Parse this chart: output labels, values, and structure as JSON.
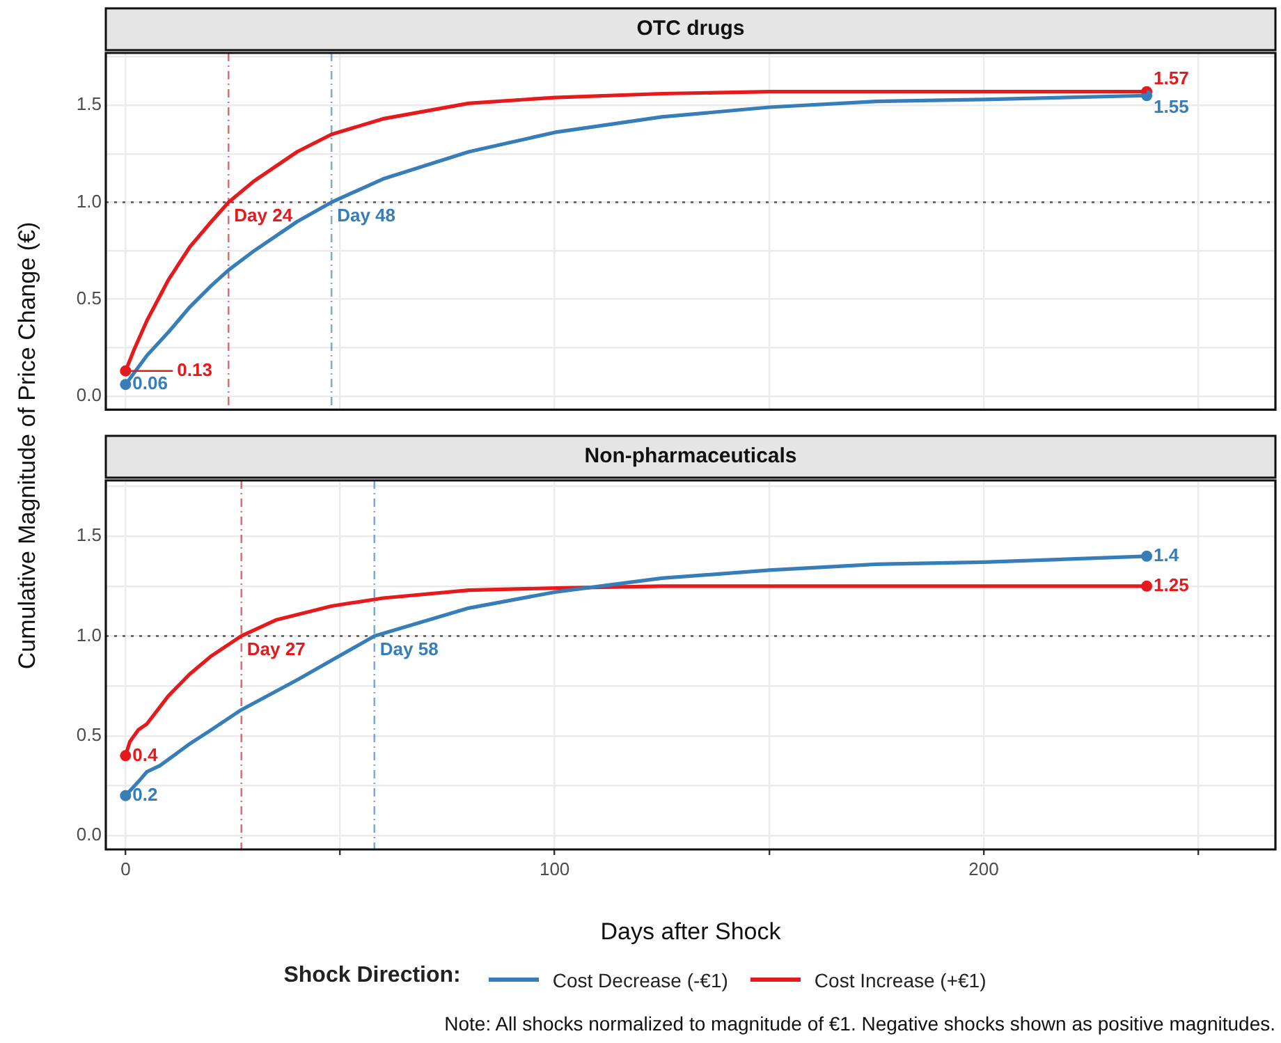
{
  "chart_data": [
    {
      "type": "line",
      "title": "OTC drugs",
      "ylabel": "Cumulative Magnitude of Price Change (€)",
      "xlim": [
        -4.6,
        268
      ],
      "ylim": [
        -0.07,
        1.77
      ],
      "xticks": [
        0,
        {
          "value": 50,
          "label": null
        },
        100,
        {
          "value": 150,
          "label": null
        },
        200,
        {
          "value": 250,
          "label": null
        }
      ],
      "yticks": [
        "0.0",
        {
          "value": 0.25,
          "label": null
        },
        {
          "value": 0.5,
          "label": "0.5"
        },
        {
          "value": 0.75,
          "label": null
        },
        {
          "value": 1,
          "label": "1.0"
        },
        {
          "value": 1.25,
          "label": null
        },
        {
          "value": 1.5,
          "label": "1.5"
        },
        {
          "value": 1.75,
          "label": null
        }
      ],
      "tick_labels": "y",
      "grid": true,
      "marker": "none",
      "line_style": "solid",
      "series": [
        {
          "color": "#377eb8",
          "x": [
            0,
            2,
            5,
            10,
            15,
            20,
            24,
            30,
            40,
            48,
            60,
            80,
            100,
            125,
            150,
            175,
            200,
            238
          ],
          "values": [
            0.06,
            0.12,
            0.21,
            0.33,
            0.46,
            0.57,
            0.65,
            0.75,
            0.9,
            1.0,
            1.12,
            1.26,
            1.36,
            1.44,
            1.49,
            1.52,
            1.53,
            1.55
          ]
        },
        {
          "color": "#e41a1c",
          "x": [
            0,
            2,
            5,
            10,
            15,
            20,
            24,
            30,
            40,
            48,
            60,
            80,
            100,
            125,
            150,
            200,
            238
          ],
          "values": [
            0.13,
            0.24,
            0.39,
            0.6,
            0.77,
            0.9,
            1.0,
            1.11,
            1.26,
            1.35,
            1.43,
            1.51,
            1.54,
            1.56,
            1.57,
            1.57,
            1.57
          ]
        },
        {
          "type": "scatter",
          "marker": "circle",
          "color": "#377eb8",
          "x": [
            0,
            238
          ],
          "values": [
            0.06,
            1.55
          ],
          "value_labels": [
            "0.06",
            "1.55"
          ]
        },
        {
          "type": "scatter",
          "marker": "circle",
          "color": "#e41a1c",
          "x": [
            0,
            238
          ],
          "values": [
            0.13,
            1.57
          ],
          "value_labels": [
            "0.13",
            "1.57"
          ]
        }
      ],
      "ref_lines": [
        {
          "axis": "y",
          "value": 1,
          "color": "#555555",
          "line_style": "dotted"
        },
        {
          "axis": "x",
          "value": 24,
          "label": "Day 24",
          "color": "#e41a1c",
          "line_style": "dashed"
        },
        {
          "axis": "x",
          "value": 48,
          "label": "Day 48",
          "color": "#377eb8",
          "line_style": "dashed"
        }
      ]
    },
    {
      "type": "line",
      "title": "Non-pharmaceuticals",
      "xlabel": "Days after Shock",
      "legend_title": "Shock Direction:",
      "legend": "bottom",
      "xlim": [
        -4.6,
        268
      ],
      "ylim": [
        -0.07,
        1.78
      ],
      "xticks": [
        0,
        {
          "value": 50,
          "label": null
        },
        100,
        {
          "value": 150,
          "label": null
        },
        200,
        {
          "value": 250,
          "label": null
        }
      ],
      "yticks": [
        {
          "value": 0,
          "label": "0.0"
        },
        {
          "value": 0.25,
          "label": null
        },
        {
          "value": 0.5,
          "label": "0.5"
        },
        {
          "value": 0.75,
          "label": null
        },
        {
          "value": 1,
          "label": "1.0"
        },
        {
          "value": 1.25,
          "label": null
        },
        {
          "value": 1.5,
          "label": "1.5"
        },
        {
          "value": 1.75,
          "label": null
        }
      ],
      "grid": true,
      "marker": "none",
      "line_style": "solid",
      "series": [
        {
          "name": "Cost Decrease (-€1)",
          "color": "#377eb8",
          "x": [
            0,
            3,
            5,
            8,
            15,
            20,
            27,
            40,
            58,
            80,
            100,
            125,
            150,
            175,
            200,
            238
          ],
          "values": [
            0.2,
            0.27,
            0.32,
            0.35,
            0.46,
            0.53,
            0.63,
            0.78,
            1.0,
            1.14,
            1.22,
            1.29,
            1.33,
            1.36,
            1.37,
            1.4
          ]
        },
        {
          "name": "Cost Increase (+€1)",
          "color": "#e41a1c",
          "x": [
            0,
            1,
            3,
            5,
            10,
            15,
            20,
            27,
            35,
            48,
            60,
            80,
            100,
            125,
            150,
            238
          ],
          "values": [
            0.4,
            0.47,
            0.53,
            0.56,
            0.7,
            0.81,
            0.9,
            1.0,
            1.08,
            1.15,
            1.19,
            1.23,
            1.24,
            1.25,
            1.25,
            1.25
          ]
        },
        {
          "type": "scatter",
          "marker": "circle",
          "color": "#377eb8",
          "x": [
            0,
            238
          ],
          "values": [
            0.2,
            1.4
          ],
          "value_labels": [
            "0.2",
            "1.4"
          ]
        },
        {
          "type": "scatter",
          "marker": "circle",
          "color": "#e41a1c",
          "x": [
            0,
            238
          ],
          "values": [
            0.4,
            1.25
          ],
          "value_labels": [
            "0.4",
            "1.25"
          ]
        }
      ],
      "ref_lines": [
        {
          "axis": "y",
          "value": 1,
          "color": "#555555",
          "line_style": "dotted"
        },
        {
          "axis": "x",
          "value": 27,
          "label": "Day 27",
          "color": "#e41a1c",
          "line_style": "dashed"
        },
        {
          "axis": "x",
          "value": 58,
          "label": "Day 58",
          "color": "#377eb8",
          "line_style": "dashed"
        }
      ],
      "annotations": [
        "Note: All shocks normalized to magnitude of €1. Negative shocks shown as positive magnitudes."
      ]
    }
  ]
}
